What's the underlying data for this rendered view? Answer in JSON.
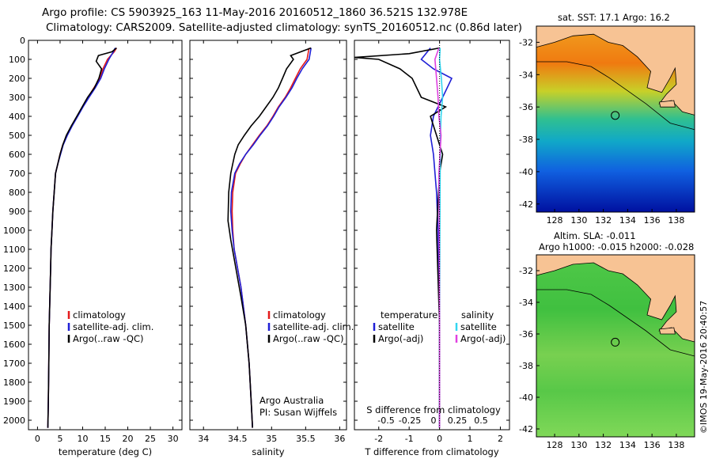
{
  "header": {
    "title_line1": "Argo profile: CS 5903925_163 11-May-2016 20160512_1860 36.521S 132.978E",
    "title_line2": "Climatology: CARS2009. Satellite-adjusted climatology: synTS_20160512.nc (0.86d later)"
  },
  "colors": {
    "climatology": "#e41a1c",
    "satellite": "#1f1fd6",
    "argo": "#000000",
    "satellite_salinity": "#33d6f0",
    "argo_salinity": "#e040e0",
    "land": "#f7c394"
  },
  "chart_data": [
    {
      "type": "line",
      "name": "temperature-profile",
      "xlabel": "temperature (deg C)",
      "ylabel": "",
      "xlim": [
        -2,
        32
      ],
      "ylim": [
        2050,
        0
      ],
      "xticks": [
        0,
        5,
        10,
        15,
        20,
        25,
        30
      ],
      "yticks": [
        0,
        100,
        200,
        300,
        400,
        500,
        600,
        700,
        800,
        900,
        1000,
        1100,
        1200,
        1300,
        1400,
        1500,
        1600,
        1700,
        1800,
        1900,
        2000
      ],
      "legend": [
        "climatology",
        "satellite-adj. clim.",
        "Argo(..raw -QC)"
      ],
      "series": [
        {
          "name": "climatology",
          "color": "#e41a1c",
          "x": [
            17.5,
            17,
            15.5,
            14.5,
            13.8,
            12.5,
            11.2,
            10,
            8.8,
            7.6,
            6.5,
            5.6,
            5,
            4.5,
            4,
            3.7,
            3.4,
            3.2,
            3,
            2.9,
            2.8,
            2.6,
            2.5,
            2.4,
            2.3
          ],
          "y": [
            40,
            60,
            100,
            150,
            200,
            250,
            300,
            350,
            400,
            450,
            500,
            550,
            600,
            650,
            700,
            800,
            900,
            1000,
            1100,
            1200,
            1300,
            1500,
            1700,
            1900,
            2040
          ]
        },
        {
          "name": "satellite-adj. clim.",
          "color": "#1f1fd6",
          "x": [
            17.2,
            16.8,
            15.8,
            14.8,
            14,
            12.8,
            11.4,
            10.1,
            8.9,
            7.7,
            6.6,
            5.7,
            5.1,
            4.5,
            4,
            3.7,
            3.4,
            3.2,
            3,
            2.9,
            2.8,
            2.6,
            2.5,
            2.4,
            2.3
          ],
          "y": [
            40,
            60,
            100,
            150,
            200,
            250,
            300,
            350,
            400,
            450,
            500,
            550,
            600,
            650,
            700,
            800,
            900,
            1000,
            1100,
            1200,
            1300,
            1500,
            1700,
            1900,
            2040
          ]
        },
        {
          "name": "Argo(..raw -QC)",
          "color": "#000000",
          "x": [
            17.5,
            16.5,
            13.5,
            13,
            14.2,
            13.6,
            12.6,
            11.1,
            9.9,
            8.7,
            7.5,
            6.4,
            5.6,
            5,
            4.5,
            4,
            3.7,
            3.4,
            3.2,
            3,
            2.9,
            2.8,
            2.6,
            2.5,
            2.4,
            2.3
          ],
          "y": [
            40,
            60,
            80,
            110,
            150,
            200,
            250,
            300,
            350,
            400,
            450,
            500,
            550,
            600,
            650,
            700,
            800,
            900,
            1000,
            1100,
            1200,
            1300,
            1500,
            1700,
            1900,
            2040
          ]
        }
      ]
    },
    {
      "type": "line",
      "name": "salinity-profile",
      "xlabel": "salinity",
      "ylabel": "",
      "xlim": [
        33.8,
        36.1
      ],
      "ylim": [
        2050,
        0
      ],
      "xticks": [
        34,
        34.5,
        35,
        35.5,
        36
      ],
      "xticklabels": [
        "34",
        "34.5",
        "35",
        "35.5",
        "36"
      ],
      "legend": [
        "climatology",
        "satellite-adj. clim.",
        "Argo(..raw -QC)"
      ],
      "annotation": [
        "Argo Australia",
        "PI: Susan Wijffels"
      ],
      "series": [
        {
          "name": "climatology",
          "color": "#e41a1c",
          "x": [
            35.55,
            35.52,
            35.42,
            35.35,
            35.28,
            35.2,
            35.1,
            35.02,
            34.93,
            34.82,
            34.72,
            34.62,
            34.54,
            34.47,
            34.43,
            34.42,
            34.43,
            34.45,
            34.5,
            34.55,
            34.62,
            34.67,
            34.7,
            34.72
          ],
          "y": [
            40,
            100,
            150,
            200,
            250,
            300,
            350,
            400,
            450,
            500,
            550,
            600,
            650,
            700,
            800,
            900,
            1000,
            1100,
            1200,
            1300,
            1500,
            1700,
            1900,
            2040
          ]
        },
        {
          "name": "satellite-adj. clim.",
          "color": "#1f1fd6",
          "x": [
            35.58,
            35.55,
            35.45,
            35.37,
            35.3,
            35.21,
            35.11,
            35.03,
            34.94,
            34.83,
            34.73,
            34.62,
            34.53,
            34.46,
            34.41,
            34.4,
            34.42,
            34.45,
            34.5,
            34.55,
            34.62,
            34.67,
            34.7,
            34.72
          ],
          "y": [
            40,
            100,
            150,
            200,
            250,
            300,
            350,
            400,
            450,
            500,
            550,
            600,
            650,
            700,
            800,
            900,
            1000,
            1100,
            1200,
            1300,
            1500,
            1700,
            1900,
            2040
          ]
        },
        {
          "name": "Argo(..raw -QC)",
          "color": "#000000",
          "x": [
            35.58,
            35.28,
            35.32,
            35.22,
            35.16,
            35.1,
            35.02,
            34.92,
            34.82,
            34.7,
            34.6,
            34.51,
            34.46,
            34.43,
            34.4,
            34.37,
            34.36,
            34.4,
            34.45,
            34.5,
            34.55,
            34.62,
            34.67,
            34.7,
            34.72
          ],
          "y": [
            40,
            80,
            100,
            150,
            200,
            250,
            300,
            350,
            400,
            450,
            500,
            550,
            600,
            650,
            700,
            800,
            950,
            1050,
            1150,
            1250,
            1350,
            1500,
            1700,
            1900,
            2040
          ]
        }
      ]
    },
    {
      "type": "line",
      "name": "difference-profile",
      "xlabel": "T difference from climatology",
      "xlabel_top": "S difference from climatology",
      "xlim": [
        -2.8,
        2.3
      ],
      "ylim": [
        2050,
        0
      ],
      "xticks": [
        -2,
        -1,
        0,
        1,
        2
      ],
      "xticklabels": [
        "-2",
        "-1",
        "0",
        "1",
        "2"
      ],
      "xticks_top": [
        -0.5,
        -0.25,
        0,
        0.25,
        0.5
      ],
      "xticklabels_top": [
        "-0.5",
        "-0.25",
        "0",
        "0.25",
        "0.5"
      ],
      "legend_headers": [
        "temperature",
        "salinity"
      ],
      "legend": [
        "satellite",
        "Argo(-adj)",
        "satellite",
        "Argo(-adj)"
      ],
      "series": [
        {
          "name": "temperature satellite",
          "color": "#1f1fd6",
          "x": [
            -0.3,
            -0.6,
            -0.2,
            0.4,
            0.1,
            -0.2,
            -0.3,
            -0.2,
            -0.1,
            -0.05,
            0,
            0
          ],
          "y": [
            40,
            100,
            150,
            200,
            300,
            400,
            500,
            600,
            800,
            1000,
            1500,
            2040
          ]
        },
        {
          "name": "temperature Argo(-adj)",
          "color": "#000000",
          "x": [
            0,
            -1.0,
            -2.8,
            -2.0,
            -1.3,
            -0.9,
            -0.6,
            0.2,
            -0.3,
            -0.1,
            0.1,
            0,
            -0.1,
            0,
            0
          ],
          "y": [
            40,
            70,
            90,
            100,
            150,
            200,
            300,
            350,
            400,
            500,
            600,
            700,
            1000,
            1500,
            2040
          ]
        },
        {
          "name": "salinity satellite",
          "color": "#33d6f0",
          "x": [
            0.02,
            0,
            0.06,
            0.1,
            0.05,
            0.03,
            0.02,
            0.01,
            0,
            0
          ],
          "y": [
            40,
            100,
            200,
            300,
            400,
            500,
            700,
            1000,
            1500,
            2040
          ]
        },
        {
          "name": "salinity Argo(-adj)",
          "color": "#e040e0",
          "x": [
            -0.02,
            -0.15,
            -0.1,
            -0.05,
            -0.02,
            0.05,
            -0.02,
            -0.01,
            0,
            0
          ],
          "y": [
            40,
            100,
            200,
            300,
            400,
            500,
            700,
            1000,
            1500,
            2040
          ]
        }
      ]
    },
    {
      "type": "heatmap",
      "name": "sst-map",
      "title": "sat. SST: 17.1 Argo: 16.2",
      "xlim": [
        126.5,
        139.5
      ],
      "ylim": [
        -42.5,
        -31
      ],
      "xticks": [
        128,
        130,
        132,
        134,
        136,
        138
      ],
      "yticks": [
        -32,
        -34,
        -36,
        -38,
        -40,
        -42
      ],
      "argo_position": [
        132.978,
        -36.521
      ]
    },
    {
      "type": "heatmap",
      "name": "sla-map",
      "title_line1": "Altim. SLA: -0.011",
      "title_line2": "Argo h1000: -0.015 h2000: -0.028",
      "xlim": [
        126.5,
        139.5
      ],
      "ylim": [
        -42.5,
        -31
      ],
      "xticks": [
        128,
        130,
        132,
        134,
        136,
        138
      ],
      "yticks": [
        -32,
        -34,
        -36,
        -38,
        -40,
        -42
      ],
      "argo_position": [
        132.978,
        -36.521
      ]
    }
  ],
  "footer": {
    "stamp": "©IMOS 19-May-2016 20:40:57"
  }
}
